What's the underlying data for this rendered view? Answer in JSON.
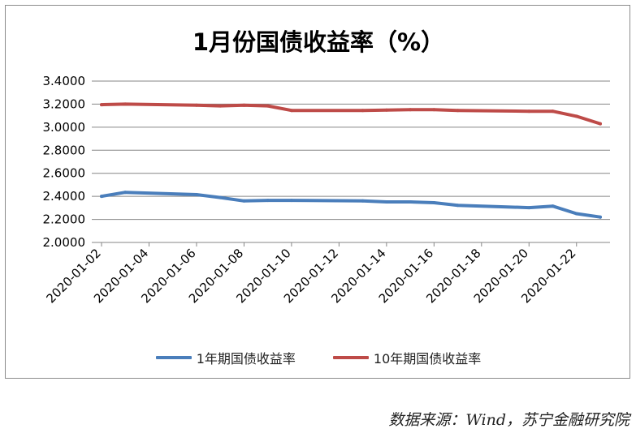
{
  "chart_data": {
    "type": "line",
    "title": "1月份国债收益率（%）",
    "xlabel": "",
    "ylabel": "",
    "ylim": [
      2.0,
      3.4
    ],
    "ytick_step": 0.2,
    "yticks": [
      "2.0000",
      "2.2000",
      "2.4000",
      "2.6000",
      "2.8000",
      "3.0000",
      "3.2000",
      "3.4000"
    ],
    "x": [
      "2020-01-02",
      "2020-01-03",
      "2020-01-06",
      "2020-01-07",
      "2020-01-08",
      "2020-01-09",
      "2020-01-10",
      "2020-01-13",
      "2020-01-14",
      "2020-01-15",
      "2020-01-16",
      "2020-01-17",
      "2020-01-20",
      "2020-01-21",
      "2020-01-22",
      "2020-01-23"
    ],
    "xlim": [
      "2020-01-02",
      "2020-01-23"
    ],
    "xtick_labels": [
      "2020-01-02",
      "2020-01-04",
      "2020-01-06",
      "2020-01-08",
      "2020-01-10",
      "2020-01-12",
      "2020-01-14",
      "2020-01-16",
      "2020-01-18",
      "2020-01-20",
      "2020-01-22"
    ],
    "grid": "horizontal",
    "legend_position": "bottom",
    "series": [
      {
        "name": "1年期国债收益率",
        "color": "#4a7ebb",
        "values": [
          2.4,
          2.435,
          2.415,
          2.39,
          2.36,
          2.365,
          2.365,
          2.36,
          2.352,
          2.352,
          2.345,
          2.322,
          2.302,
          2.315,
          2.25,
          2.22
        ]
      },
      {
        "name": "10年期国债收益率",
        "color": "#be4b48",
        "values": [
          3.195,
          3.2,
          3.19,
          3.185,
          3.19,
          3.185,
          3.145,
          3.145,
          3.148,
          3.152,
          3.152,
          3.145,
          3.138,
          3.138,
          3.095,
          3.03
        ]
      }
    ]
  },
  "source_note": "数据来源：Wind，苏宁金融研究院"
}
